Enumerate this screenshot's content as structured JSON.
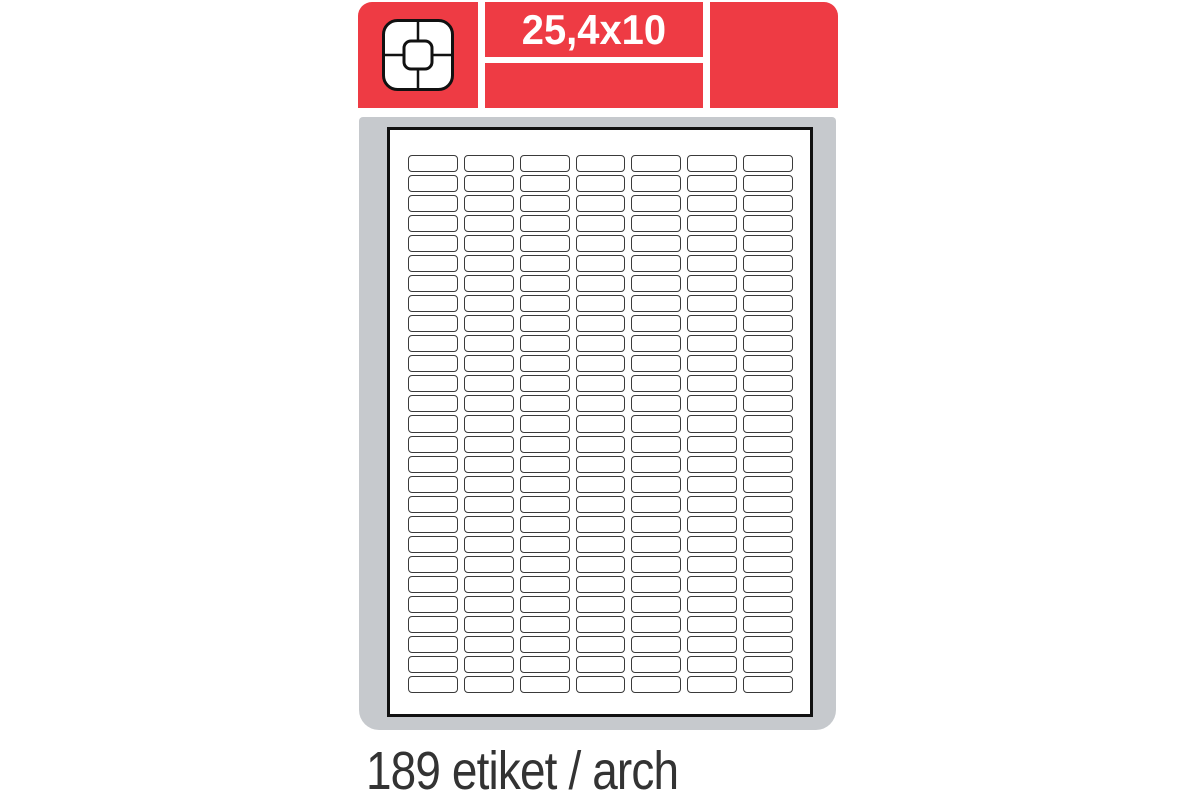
{
  "header": {
    "dimension": "25,4x10",
    "icon": "label-format-icon"
  },
  "sheet": {
    "columns": 7,
    "rows": 27,
    "total_labels": 189
  },
  "caption": {
    "text": "189 etiket / arch"
  },
  "colors": {
    "accent_red": "#ee3b44",
    "sheet_gray": "#c6c9cd",
    "page_border": "#111111",
    "label_border": "#3a3a3a",
    "caption_text": "#333333"
  }
}
